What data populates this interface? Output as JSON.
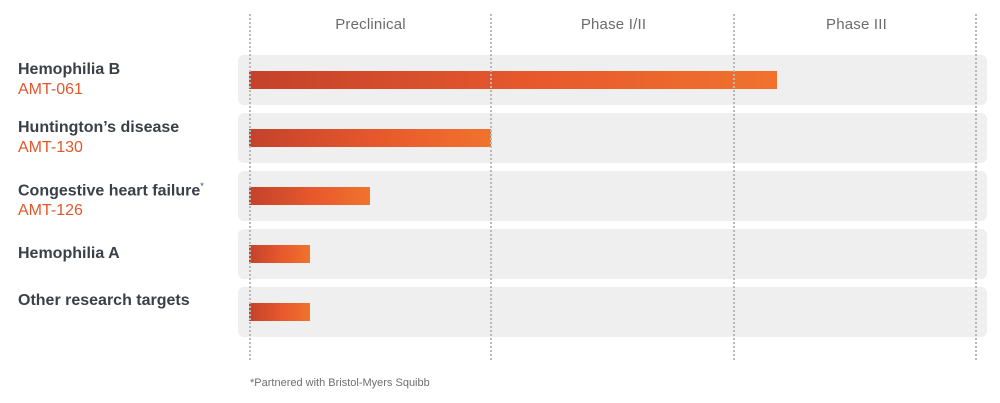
{
  "chart_data": {
    "type": "bar",
    "orientation": "horizontal",
    "phases": [
      "Preclinical",
      "Phase I/II",
      "Phase III"
    ],
    "rows": [
      {
        "name": "Hemophilia B",
        "code": "AMT-061",
        "superscript": "",
        "progress": 2.18
      },
      {
        "name": "Huntington’s disease",
        "code": "AMT-130",
        "superscript": "",
        "progress": 1.0
      },
      {
        "name": "Congestive heart failure",
        "code": "AMT-126",
        "superscript": "*",
        "progress": 0.5
      },
      {
        "name": "Hemophilia A",
        "code": "",
        "superscript": "",
        "progress": 0.25
      },
      {
        "name": "Other research targets",
        "code": "",
        "superscript": "",
        "progress": 0.25
      }
    ],
    "xlim": [
      0,
      3
    ],
    "grid": true,
    "footnote": "*Partnered with Bristol-Myers Squibb"
  },
  "colors": {
    "bar_start": "#c3422b",
    "bar_end": "#f0732d",
    "code_text": "#e0582c",
    "label_text": "#3b3f48",
    "row_background": "#efefef"
  }
}
